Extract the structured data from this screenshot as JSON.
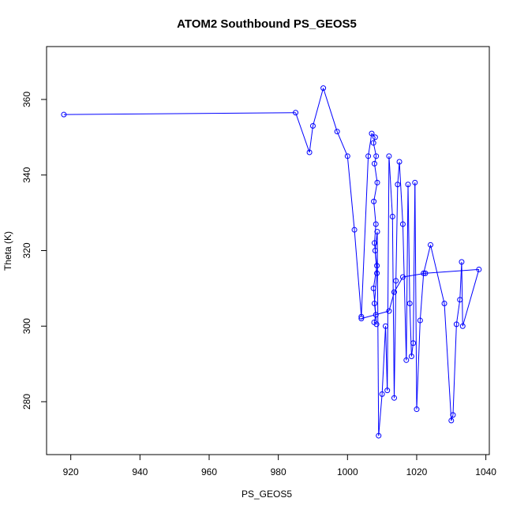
{
  "chart_data": {
    "type": "scatter",
    "title": "ATOM2 Southbound PS_GEOS5",
    "xlabel": "PS_GEOS5",
    "ylabel": "Theta (K)",
    "xlim": [
      913,
      1041
    ],
    "ylim": [
      266,
      374
    ],
    "xticks": [
      920,
      940,
      960,
      980,
      1000,
      1020,
      1040
    ],
    "yticks": [
      280,
      300,
      320,
      340,
      360
    ],
    "grid": false,
    "legend": "none",
    "colors": {
      "series": "#0000ff",
      "axis": "#000000",
      "background": "#ffffff"
    },
    "series": [
      {
        "points": [
          [
            918,
            356
          ],
          [
            985,
            356.5
          ],
          [
            989,
            346
          ],
          [
            990,
            353
          ],
          [
            993,
            363
          ],
          [
            997,
            351.5
          ],
          [
            1000,
            345
          ],
          [
            1002,
            325.5
          ],
          [
            1004,
            302.5
          ],
          [
            1006,
            345
          ],
          [
            1007,
            351
          ],
          [
            1008,
            350
          ],
          [
            1007.5,
            348.5
          ],
          [
            1008.3,
            345
          ],
          [
            1007.8,
            343
          ],
          [
            1008.6,
            338
          ],
          [
            1007.6,
            333
          ],
          [
            1008.2,
            327
          ],
          [
            1007.8,
            322
          ],
          [
            1008.5,
            316
          ],
          [
            1007.5,
            310
          ],
          [
            1008.2,
            303
          ],
          [
            1007.7,
            301
          ],
          [
            1008.4,
            300.5
          ],
          [
            1007.8,
            306
          ],
          [
            1008.5,
            314
          ],
          [
            1008,
            320
          ],
          [
            1008.6,
            325
          ],
          [
            1009,
            271
          ],
          [
            1010,
            282
          ],
          [
            1011,
            300
          ],
          [
            1011.5,
            283
          ],
          [
            1012,
            345
          ],
          [
            1013,
            329
          ],
          [
            1013.5,
            281
          ],
          [
            1014,
            312
          ],
          [
            1014.5,
            337.5
          ],
          [
            1015,
            343.5
          ],
          [
            1016,
            327
          ],
          [
            1017,
            291
          ],
          [
            1017.5,
            337.5
          ],
          [
            1018,
            306
          ],
          [
            1018.5,
            292
          ],
          [
            1019,
            295.5
          ],
          [
            1019.5,
            338
          ],
          [
            1020,
            278
          ],
          [
            1021,
            301.5
          ],
          [
            1022,
            314
          ],
          [
            1024,
            321.5
          ],
          [
            1028,
            306
          ],
          [
            1030,
            275
          ],
          [
            1030.5,
            276.5
          ],
          [
            1031.5,
            300.5
          ],
          [
            1032.5,
            307
          ],
          [
            1033,
            317
          ],
          [
            1033.3,
            300
          ],
          [
            1038,
            315
          ],
          [
            1022.5,
            314
          ],
          [
            1016,
            313
          ],
          [
            1013.5,
            309
          ],
          [
            1012,
            304
          ],
          [
            1004,
            302
          ]
        ]
      }
    ]
  }
}
